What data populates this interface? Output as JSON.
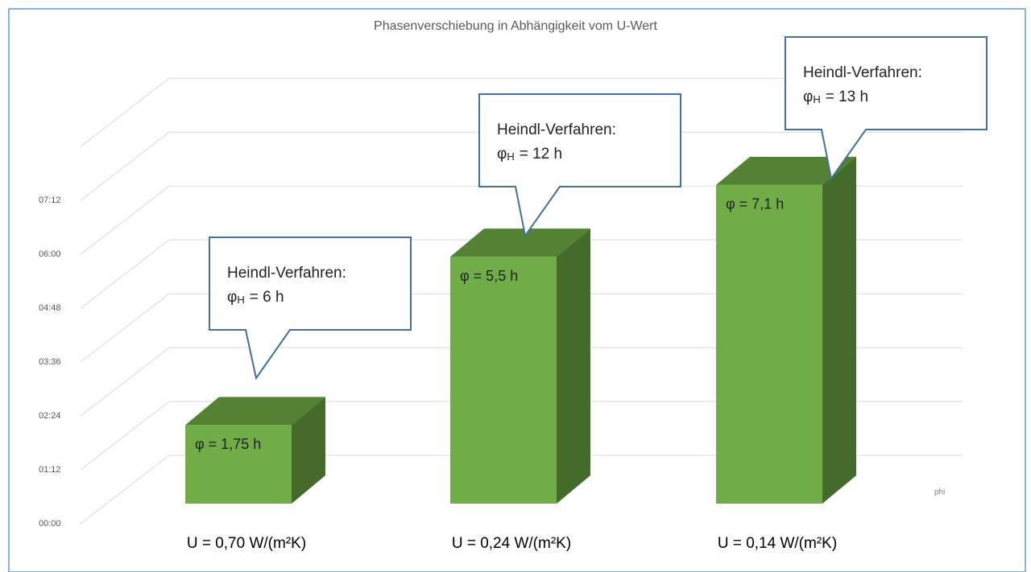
{
  "chart_data": {
    "type": "bar3d",
    "title": "Phasenverschiebung in Abhängigkeit vom U-Wert",
    "categories": [
      "U = 0,70 W/(m²K)",
      "U = 0,24 W/(m²K)",
      "U = 0,14 W/(m²K)"
    ],
    "series": [
      {
        "name": "phi",
        "color": "#70ad47",
        "values": [
          1.75,
          5.5,
          7.1
        ],
        "value_labels": [
          "φ = 1,75 h",
          "φ = 5,5 h",
          "φ = 7,1 h"
        ]
      }
    ],
    "ylim": [
      0,
      8.4
    ],
    "yticks": [
      {
        "value": 0,
        "label": "00:00"
      },
      {
        "value": 1.2,
        "label": "01:12"
      },
      {
        "value": 2.4,
        "label": "02:24"
      },
      {
        "value": 3.6,
        "label": "03:36"
      },
      {
        "value": 4.8,
        "label": "04:48"
      },
      {
        "value": 6,
        "label": "06:00"
      },
      {
        "value": 7.2,
        "label": "07:12"
      }
    ],
    "grid": true,
    "callouts": [
      {
        "title": "Heindl-Verfahren:",
        "symbol": "φ",
        "subscript": "H",
        "text": "= 6 h"
      },
      {
        "title": "Heindl-Verfahren:",
        "symbol": "φ",
        "subscript": "H",
        "text": "= 12 h"
      },
      {
        "title": "Heindl-Verfahren:",
        "symbol": "φ",
        "subscript": "H",
        "text": "= 13 h"
      }
    ]
  }
}
